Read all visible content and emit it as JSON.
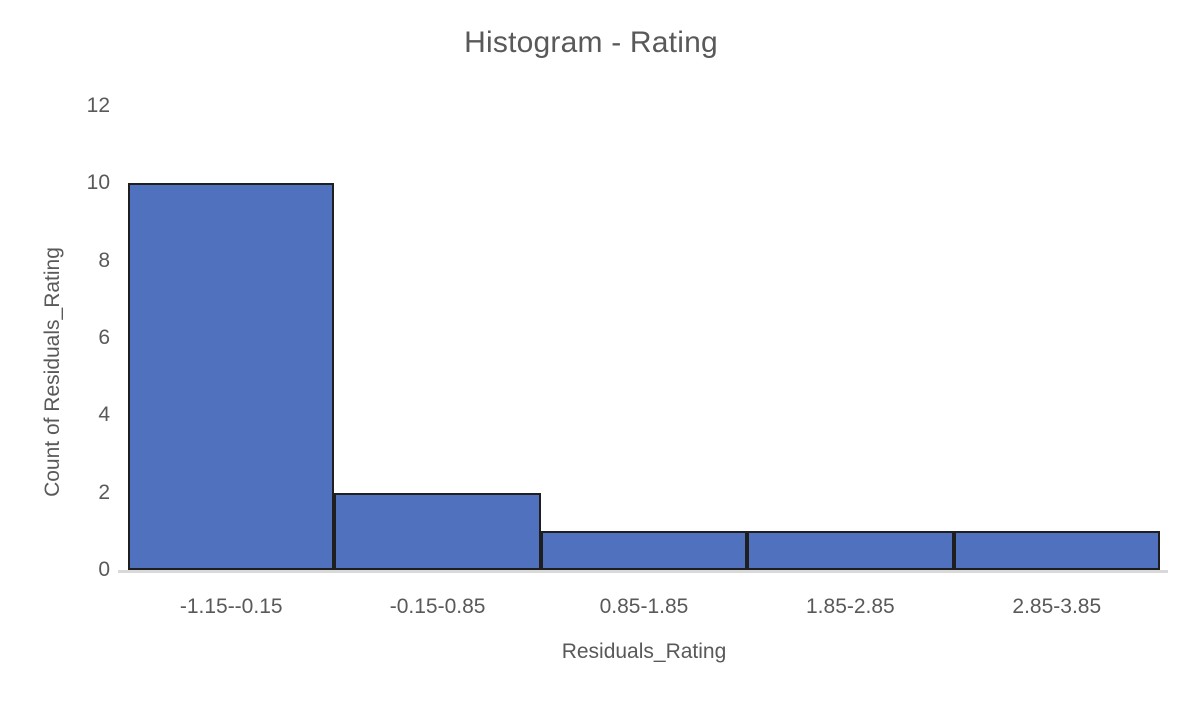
{
  "chart_data": {
    "type": "bar",
    "subtype": "histogram",
    "title": "Histogram - Rating",
    "xlabel": "Residuals_Rating",
    "ylabel": "Count of Residuals_Rating",
    "categories": [
      "-1.15--0.15",
      "-0.15-0.85",
      "0.85-1.85",
      "1.85-2.85",
      "2.85-3.85"
    ],
    "values": [
      10,
      2,
      1,
      1,
      1
    ],
    "ylim": [
      0,
      12
    ],
    "yticks": [
      0,
      2,
      4,
      6,
      8,
      10,
      12
    ],
    "grid": false,
    "legend": "none",
    "bar_gap": 0,
    "colors": {
      "bar_fill": "#4F71BE",
      "bar_border": "#1F1F1F",
      "axis_baseline": "#D9D9D9",
      "text": "#595959",
      "background": "#FFFFFF"
    }
  }
}
